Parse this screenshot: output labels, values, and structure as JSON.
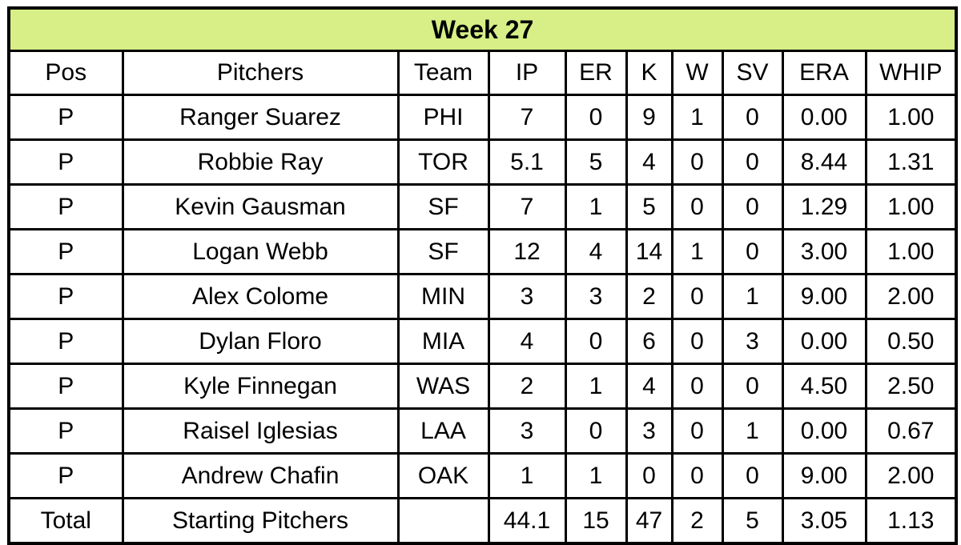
{
  "chart_data": {
    "type": "table",
    "title": "Week 27",
    "columns": [
      "Pos",
      "Pitchers",
      "Team",
      "IP",
      "ER",
      "K",
      "W",
      "SV",
      "ERA",
      "WHIP"
    ],
    "rows": [
      [
        "P",
        "Ranger Suarez",
        "PHI",
        "7",
        "0",
        "9",
        "1",
        "0",
        "0.00",
        "1.00"
      ],
      [
        "P",
        "Robbie Ray",
        "TOR",
        "5.1",
        "5",
        "4",
        "0",
        "0",
        "8.44",
        "1.31"
      ],
      [
        "P",
        "Kevin Gausman",
        "SF",
        "7",
        "1",
        "5",
        "0",
        "0",
        "1.29",
        "1.00"
      ],
      [
        "P",
        "Logan Webb",
        "SF",
        "12",
        "4",
        "14",
        "1",
        "0",
        "3.00",
        "1.00"
      ],
      [
        "P",
        "Alex Colome",
        "MIN",
        "3",
        "3",
        "2",
        "0",
        "1",
        "9.00",
        "2.00"
      ],
      [
        "P",
        "Dylan Floro",
        "MIA",
        "4",
        "0",
        "6",
        "0",
        "3",
        "0.00",
        "0.50"
      ],
      [
        "P",
        "Kyle Finnegan",
        "WAS",
        "2",
        "1",
        "4",
        "0",
        "0",
        "4.50",
        "2.50"
      ],
      [
        "P",
        "Raisel Iglesias",
        "LAA",
        "3",
        "0",
        "3",
        "0",
        "1",
        "0.00",
        "0.67"
      ],
      [
        "P",
        "Andrew Chafin",
        "OAK",
        "1",
        "1",
        "0",
        "0",
        "0",
        "9.00",
        "2.00"
      ]
    ],
    "total_row": [
      "Total",
      "Starting Pitchers",
      "",
      "44.1",
      "15",
      "47",
      "2",
      "5",
      "3.05",
      "1.13"
    ],
    "colors": {
      "title_bg": "#d7ef86",
      "border": "#000000",
      "cell_bg": "#ffffff",
      "text": "#000000"
    },
    "layout": {
      "grid": "on",
      "title_position": "top-banner",
      "header_row": true,
      "total_row_present": true
    }
  }
}
